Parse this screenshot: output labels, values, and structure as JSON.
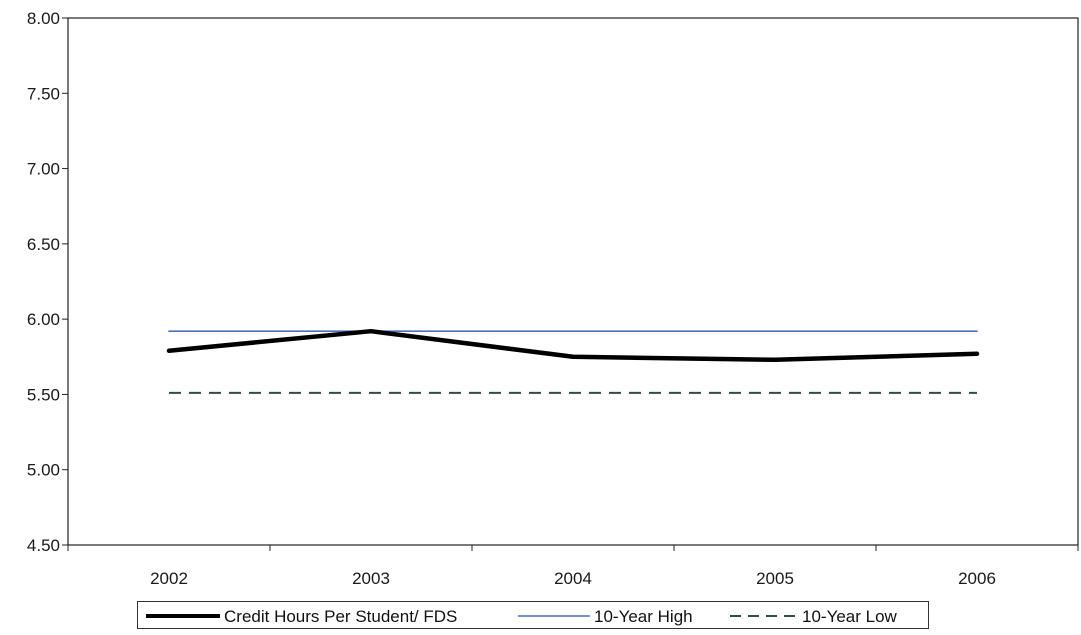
{
  "chart_data": {
    "type": "line",
    "categories": [
      "2002",
      "2003",
      "2004",
      "2005",
      "2006"
    ],
    "ylim": [
      4.5,
      8.0
    ],
    "yticks": [
      "4.50",
      "5.00",
      "5.50",
      "6.00",
      "6.50",
      "7.00",
      "7.50",
      "8.00"
    ],
    "grid": false,
    "legend_position": "bottom",
    "series": [
      {
        "name": "Credit Hours Per Student/ FDS",
        "values": [
          5.79,
          5.92,
          5.75,
          5.73,
          5.77
        ],
        "color": "#000000",
        "style": "solid-thick"
      },
      {
        "name": "10-Year High",
        "values": [
          5.92,
          5.92,
          5.92,
          5.92,
          5.92
        ],
        "color": "#4a6fc4",
        "style": "solid-thin"
      },
      {
        "name": "10-Year Low",
        "values": [
          5.51,
          5.51,
          5.51,
          5.51,
          5.51
        ],
        "color": "#2f4f3f",
        "style": "dashed"
      }
    ]
  }
}
